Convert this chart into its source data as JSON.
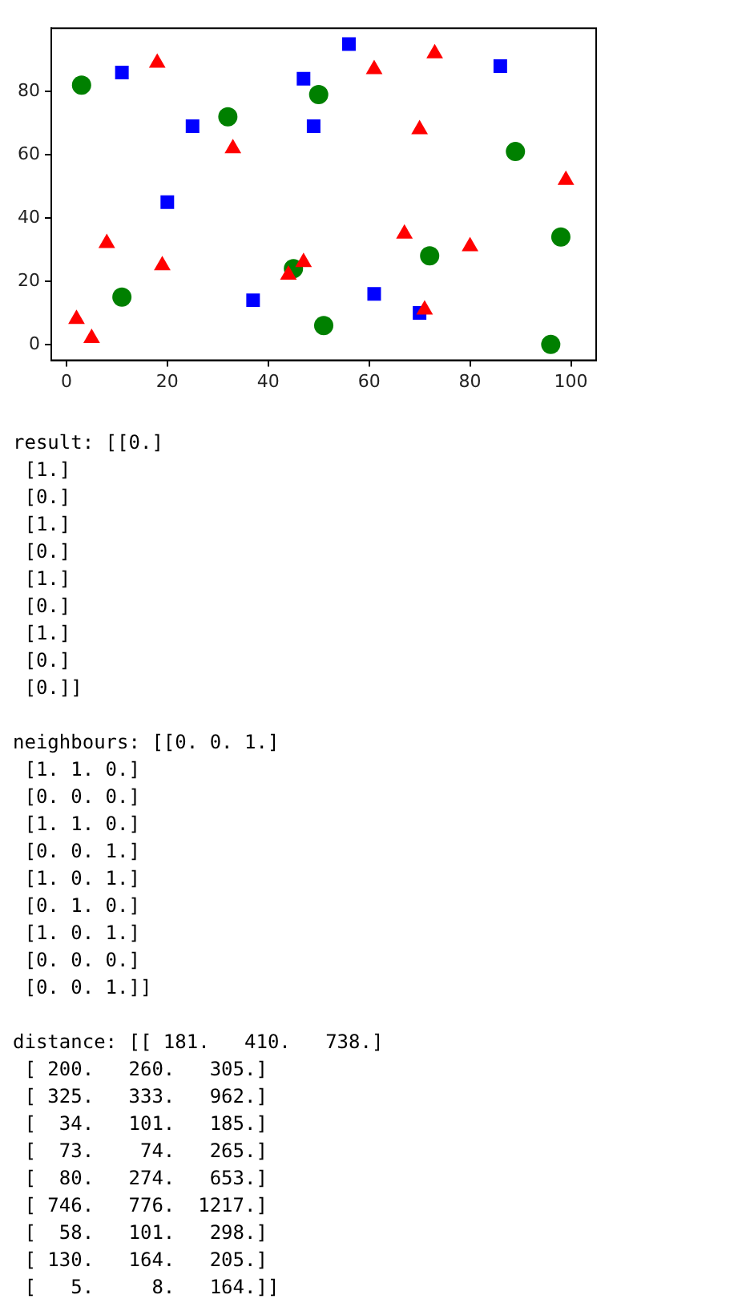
{
  "chart_data": {
    "type": "scatter",
    "xlim": [
      -3,
      105
    ],
    "ylim": [
      -5,
      100
    ],
    "xticks": [
      0,
      20,
      40,
      60,
      80,
      100
    ],
    "yticks": [
      0,
      20,
      40,
      60,
      80
    ],
    "grid": false,
    "legend": false,
    "series": [
      {
        "color": "#ff0000",
        "marker": "triangle",
        "x": [
          18,
          33,
          8,
          19,
          2,
          5,
          44,
          47,
          61,
          73,
          70,
          99,
          67,
          80,
          71
        ],
        "values": [
          89,
          62,
          32,
          25,
          8,
          2,
          22,
          26,
          87,
          92,
          68,
          52,
          35,
          31,
          11
        ]
      },
      {
        "color": "#008000",
        "marker": "circle",
        "x": [
          3,
          32,
          50,
          11,
          45,
          51,
          89,
          98,
          72,
          96
        ],
        "values": [
          82,
          72,
          79,
          15,
          24,
          6,
          61,
          34,
          28,
          0
        ]
      },
      {
        "color": "#0000ff",
        "marker": "square",
        "x": [
          11,
          25,
          47,
          49,
          56,
          20,
          37,
          61,
          70,
          86
        ],
        "values": [
          86,
          69,
          84,
          69,
          95,
          45,
          14,
          16,
          10,
          88
        ]
      }
    ],
    "annotations": [
      "result: [[0.]\n [1.]\n [0.]\n [1.]\n [0.]\n [1.]\n [0.]\n [1.]\n [0.]\n [0.]]",
      "neighbours: [[0. 0. 1.]\n [1. 1. 0.]\n [0. 0. 0.]\n [1. 1. 0.]\n [0. 0. 1.]\n [1. 0. 1.]\n [0. 1. 0.]\n [1. 0. 1.]\n [0. 0. 0.]\n [0. 0. 1.]]",
      "distance: [[ 181.   410.   738.]\n [ 200.   260.   305.]\n [ 325.   333.   962.]\n [  34.   101.   185.]\n [  73.    74.   265.]\n [  80.   274.   653.]\n [ 746.   776.  1217.]\n [  58.   101.   298.]\n [ 130.   164.   205.]\n [   5.     8.   164.]]"
    ]
  }
}
